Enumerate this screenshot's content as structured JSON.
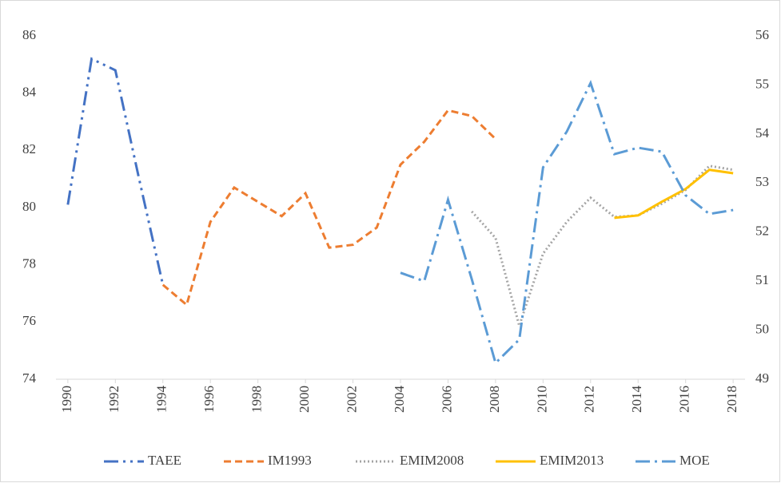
{
  "chart_data": {
    "type": "line",
    "x": [
      1990,
      1991,
      1992,
      1993,
      1994,
      1995,
      1996,
      1997,
      1998,
      1999,
      2000,
      2001,
      2002,
      2003,
      2004,
      2005,
      2006,
      2007,
      2008,
      2009,
      2010,
      2011,
      2012,
      2013,
      2014,
      2015,
      2016,
      2017,
      2018
    ],
    "xlim": [
      1989.5,
      2018.5
    ],
    "xticks": [
      1990,
      1992,
      1994,
      1996,
      1998,
      2000,
      2002,
      2004,
      2006,
      2008,
      2010,
      2012,
      2014,
      2016,
      2018
    ],
    "ylim": [
      74,
      86
    ],
    "yticks": [
      74,
      76,
      78,
      80,
      82,
      84,
      86
    ],
    "y2lim": [
      49,
      56
    ],
    "y2ticks": [
      49,
      50,
      51,
      52,
      53,
      54,
      55,
      56
    ],
    "legend": "bottom",
    "series": [
      {
        "name": "TAEE",
        "color": "#4472c4",
        "dash": "long-dash-dot-dot",
        "values": [
          80.1,
          85.2,
          84.8,
          81.0,
          77.3,
          null,
          null,
          null,
          null,
          null,
          null,
          null,
          null,
          null,
          null,
          null,
          null,
          null,
          null,
          null,
          null,
          null,
          null,
          null,
          null,
          null,
          null,
          null,
          null
        ]
      },
      {
        "name": "IM1993",
        "color": "#ed7d31",
        "dash": "dash",
        "values": [
          null,
          null,
          null,
          null,
          77.3,
          76.6,
          79.5,
          80.7,
          80.2,
          79.7,
          80.5,
          78.6,
          78.7,
          79.3,
          81.5,
          82.3,
          83.4,
          83.2,
          82.4,
          null,
          null,
          null,
          null,
          null,
          null,
          null,
          null,
          null,
          null
        ]
      },
      {
        "name": "EMIM2008",
        "color": "#a5a5a5",
        "dash": "dot",
        "axis": "y2",
        "values": [
          null,
          null,
          null,
          null,
          null,
          null,
          null,
          null,
          null,
          null,
          null,
          null,
          null,
          null,
          null,
          null,
          null,
          52.42,
          51.88,
          50.09,
          51.56,
          52.21,
          52.7,
          52.31,
          52.34,
          52.58,
          52.86,
          53.35,
          53.27
        ]
      },
      {
        "name": "EMIM2013",
        "color": "#ffc000",
        "dash": "solid",
        "axis": "y2",
        "values": [
          null,
          null,
          null,
          null,
          null,
          null,
          null,
          null,
          null,
          null,
          null,
          null,
          null,
          null,
          null,
          null,
          null,
          null,
          null,
          null,
          null,
          null,
          null,
          52.29,
          52.34,
          52.62,
          52.88,
          53.27,
          53.2
        ]
      },
      {
        "name": "MOE",
        "color": "#5b9bd5",
        "dash": "long-dash-dot",
        "axis": "y2",
        "values": [
          null,
          null,
          null,
          null,
          null,
          null,
          null,
          null,
          null,
          null,
          null,
          null,
          null,
          null,
          51.17,
          51.0,
          52.66,
          51.04,
          49.33,
          49.81,
          53.32,
          54.05,
          55.04,
          53.59,
          53.72,
          53.64,
          52.75,
          52.37,
          52.45
        ]
      }
    ]
  }
}
